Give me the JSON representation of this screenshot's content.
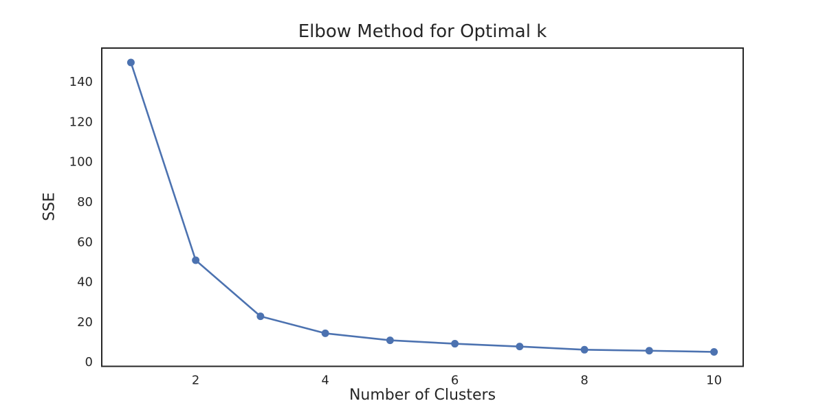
{
  "figure": {
    "background": "#ffffff"
  },
  "chart_data": {
    "type": "line",
    "title": "Elbow Method for Optimal k",
    "xlabel": "Number of Clusters",
    "ylabel": "SSE",
    "series": [
      {
        "name": "SSE",
        "x": [
          1,
          2,
          3,
          4,
          5,
          6,
          7,
          8,
          9,
          10
        ],
        "y": [
          149.8,
          51,
          23,
          14.5,
          11,
          9.3,
          7.9,
          6.3,
          5.8,
          5.2
        ]
      }
    ],
    "x_ticks": [
      2,
      4,
      6,
      8,
      10
    ],
    "y_ticks": [
      0,
      20,
      40,
      60,
      80,
      100,
      120,
      140
    ],
    "xlim": [
      0.55,
      10.45
    ],
    "ylim": [
      -2,
      157
    ],
    "grid": false,
    "legend": "none",
    "marker": "circle",
    "marker_size": 5.5,
    "line_width": 2.6,
    "line_color": "#4C72B0",
    "spine_color": "#262626",
    "text_color": "#262626",
    "tick_font_size": 18
  }
}
